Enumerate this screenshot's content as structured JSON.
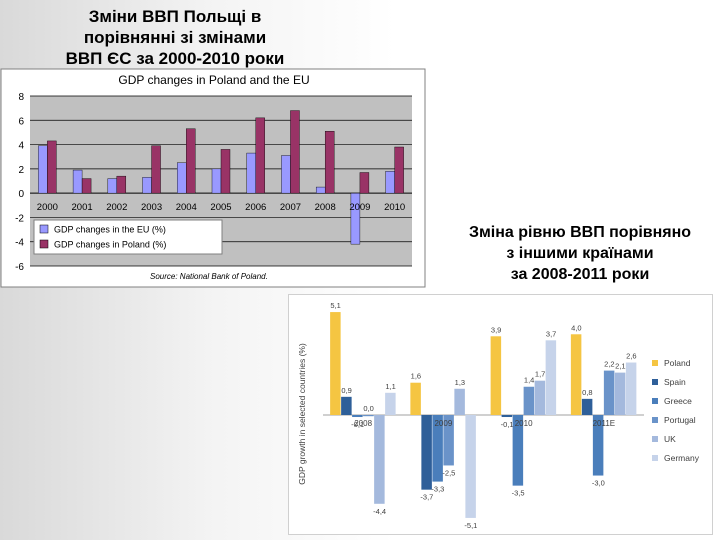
{
  "slide": {
    "title_lines": [
      "Зміни ВВП Польщі  в",
      "порівнянні зі змінами",
      "ВВП ЄС за 2000-2010 роки"
    ],
    "caption_lines": [
      "Зміна рівню ВВП порівняно",
      "з іншими країнами",
      "за 2008-2011 роки"
    ]
  },
  "chart_data": [
    {
      "type": "bar",
      "title": "GDP changes in Poland and the EU",
      "source": "Source: National Bank of Poland.",
      "categories": [
        "2000",
        "2001",
        "2002",
        "2003",
        "2004",
        "2005",
        "2006",
        "2007",
        "2008",
        "2009",
        "2010"
      ],
      "series": [
        {
          "name": "GDP changes in the EU (%)",
          "color": "#9999ff",
          "values": [
            3.9,
            1.9,
            1.2,
            1.3,
            2.5,
            2.0,
            3.3,
            3.1,
            0.5,
            -4.2,
            1.8
          ]
        },
        {
          "name": "GDP changes in Poland (%)",
          "color": "#993366",
          "values": [
            4.3,
            1.2,
            1.4,
            3.9,
            5.3,
            3.6,
            6.2,
            6.8,
            5.1,
            1.7,
            3.8
          ]
        }
      ],
      "ylim": [
        -6,
        8
      ],
      "yticks": [
        -6,
        -4,
        -2,
        0,
        2,
        4,
        6,
        8
      ],
      "grid": true,
      "legend_position": "bottom-left",
      "plot_background": "#c0c0c0"
    },
    {
      "type": "bar",
      "ylabel": "GDP growth in selected countries (%)",
      "categories": [
        "2008",
        "2009",
        "2010",
        "2011E"
      ],
      "series": [
        {
          "name": "Poland",
          "color": "#f5c542",
          "values": [
            5.1,
            1.6,
            3.9,
            4.0
          ],
          "labels": [
            "5,1",
            "1,6",
            "3,9",
            "4,0"
          ]
        },
        {
          "name": "Spain",
          "color": "#2e5f99",
          "values": [
            0.9,
            -3.7,
            -0.1,
            0.8
          ],
          "labels": [
            "0,9",
            "-3,7",
            "-0,1",
            "0,8"
          ]
        },
        {
          "name": "Greece",
          "color": "#4a7ebb",
          "values": [
            -0.1,
            -3.3,
            -3.5,
            -3.0
          ],
          "labels": [
            "-0,1",
            "-3,3",
            "-3,5",
            "-3,0"
          ]
        },
        {
          "name": "Portugal",
          "color": "#6a93c9",
          "values": [
            0.0,
            -2.5,
            1.4,
            2.2
          ],
          "labels": [
            "0,0",
            "-2,5",
            "1,4",
            "2,2"
          ]
        },
        {
          "name": "UK",
          "color": "#a4b9dd",
          "values": [
            -4.4,
            1.3,
            1.7,
            2.1
          ],
          "labels": [
            "-4,4",
            "1,3",
            "1,7",
            "2,1"
          ]
        },
        {
          "name": "Germany",
          "color": "#c6d3ea",
          "values": [
            1.1,
            -5.1,
            3.7,
            2.6
          ],
          "labels": [
            "1,1",
            "-5,1",
            "3,7",
            "2,6"
          ]
        }
      ],
      "ylim": [
        -5.5,
        5.5
      ],
      "grid": false,
      "legend_position": "right"
    }
  ]
}
